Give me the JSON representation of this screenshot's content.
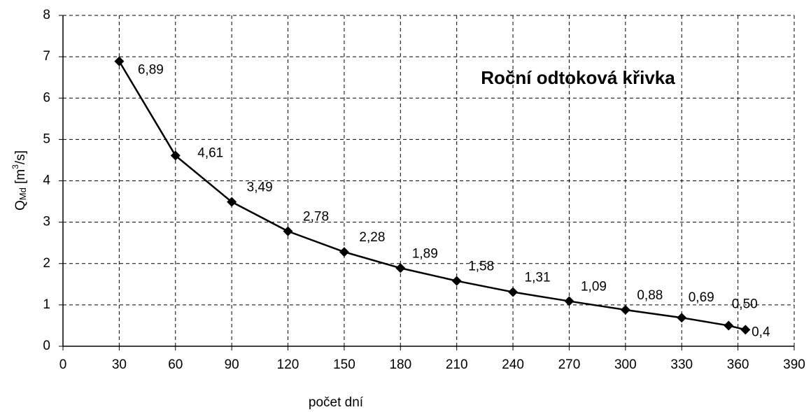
{
  "chart_data": {
    "type": "line",
    "title": "Roční odtoková křivka",
    "x_label": "počet dní",
    "y_label": [
      "Q",
      "Md",
      " [m",
      "3",
      "/s]"
    ],
    "x": [
      30,
      60,
      90,
      120,
      150,
      180,
      210,
      240,
      270,
      300,
      330,
      355,
      364
    ],
    "series": [
      {
        "color": "#000000",
        "values": [
          6.89,
          4.61,
          3.49,
          2.78,
          2.28,
          1.89,
          1.58,
          1.31,
          1.09,
          0.88,
          0.69,
          0.5,
          0.4
        ],
        "value_labels": [
          "6,89",
          "4,61",
          "3,49",
          "2,78",
          "2,28",
          "1,89",
          "1,58",
          "1,31",
          "1,09",
          "0,88",
          "0,69",
          "0,50",
          "0,4"
        ]
      }
    ],
    "xlim": [
      0,
      390
    ],
    "xticks": [
      0,
      30,
      60,
      90,
      120,
      150,
      180,
      210,
      240,
      270,
      300,
      330,
      360,
      390
    ],
    "ylim": [
      0,
      8
    ],
    "yticks": [
      0,
      1,
      2,
      3,
      4,
      5,
      6,
      7,
      8
    ],
    "grid": true
  }
}
